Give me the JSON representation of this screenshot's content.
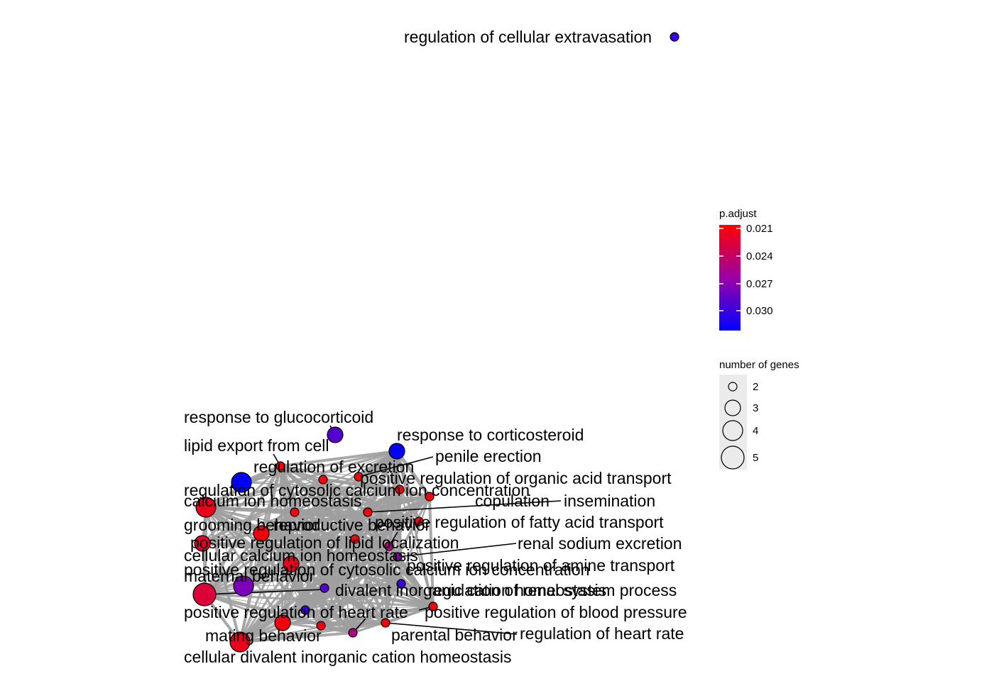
{
  "chart_data": {
    "type": "network",
    "title": "",
    "grid": false,
    "legend_position": "right",
    "colors": {
      "low": "#ff0000",
      "high": "#0000ff",
      "edge": "#9e9e9e",
      "node_border": "#000000",
      "legend_bg": "#ebebeb"
    },
    "color_legend": {
      "title": "p.adjust",
      "ticks": [
        "0.021",
        "0.024",
        "0.027",
        "0.030"
      ],
      "min": 0.0205,
      "max": 0.0322
    },
    "size_legend": {
      "title": "number of genes",
      "ticks": [
        "2",
        "3",
        "4",
        "5"
      ]
    },
    "nodes": [
      {
        "label": "regulation of cellular extravasation",
        "genes": 2,
        "padj": 0.03
      },
      {
        "label": "response to glucocorticoid",
        "genes": 3,
        "padj": 0.029
      },
      {
        "label": "response to corticosteroid",
        "genes": 3,
        "padj": 0.032
      },
      {
        "label": "lipid export from cell",
        "genes": 2,
        "padj": 0.021
      },
      {
        "label": "penile erection",
        "genes": 2,
        "padj": 0.021
      },
      {
        "label": "regulation of excretion",
        "genes": 2,
        "padj": 0.021
      },
      {
        "label": "positive regulation of organic acid transport",
        "genes": 2,
        "padj": 0.021
      },
      {
        "label": "regulation of cytosolic calcium ion concentration",
        "genes": 4,
        "padj": 0.032
      },
      {
        "label": "calcium ion homeostasis",
        "genes": 4,
        "padj": 0.0215
      },
      {
        "label": "copulation",
        "genes": 2,
        "padj": 0.021
      },
      {
        "label": "insemination",
        "genes": 2,
        "padj": 0.021
      },
      {
        "label": "grooming behavior",
        "genes": 3,
        "padj": 0.021
      },
      {
        "label": "reproductive behavior",
        "genes": 2,
        "padj": 0.021
      },
      {
        "label": "positive regulation of fatty acid transport",
        "genes": 2,
        "padj": 0.021
      },
      {
        "label": "positive regulation of lipid localization",
        "genes": 2,
        "padj": 0.025
      },
      {
        "label": "renal sodium excretion",
        "genes": 2,
        "padj": 0.027
      },
      {
        "label": "cellular calcium ion homeostasis",
        "genes": 3,
        "padj": 0.022
      },
      {
        "label": "positive regulation of cytosolic calcium ion concentration",
        "genes": 3,
        "padj": 0.0215
      },
      {
        "label": "positive regulation of amine transport",
        "genes": 2,
        "padj": 0.03
      },
      {
        "label": "maternal behavior",
        "genes": 4,
        "padj": 0.0275
      },
      {
        "label": "divalent inorganic cation homeostasis",
        "genes": 2,
        "padj": 0.029
      },
      {
        "label": "regulation of renal system process",
        "genes": 2,
        "padj": 0.021
      },
      {
        "label": "positive regulation of blood pressure",
        "genes": 2,
        "padj": 0.021
      },
      {
        "label": "positive regulation of heart rate",
        "genes": 2,
        "padj": 0.025
      },
      {
        "label": "regulation of heart rate",
        "genes": 2,
        "padj": 0.021
      },
      {
        "label": "parental behavior",
        "genes": 2,
        "padj": 0.021
      },
      {
        "label": "mating behavior",
        "genes": 3,
        "padj": 0.021
      },
      {
        "label": "cellular divalent inorganic cation homeostasis",
        "genes": 4,
        "padj": 0.0215
      },
      {
        "label": "",
        "genes": 5,
        "padj": 0.0225
      },
      {
        "label": "",
        "genes": 2,
        "padj": 0.021
      },
      {
        "label": "",
        "genes": 2,
        "padj": 0.021
      },
      {
        "label": "",
        "genes": 2,
        "padj": 0.03
      }
    ]
  }
}
